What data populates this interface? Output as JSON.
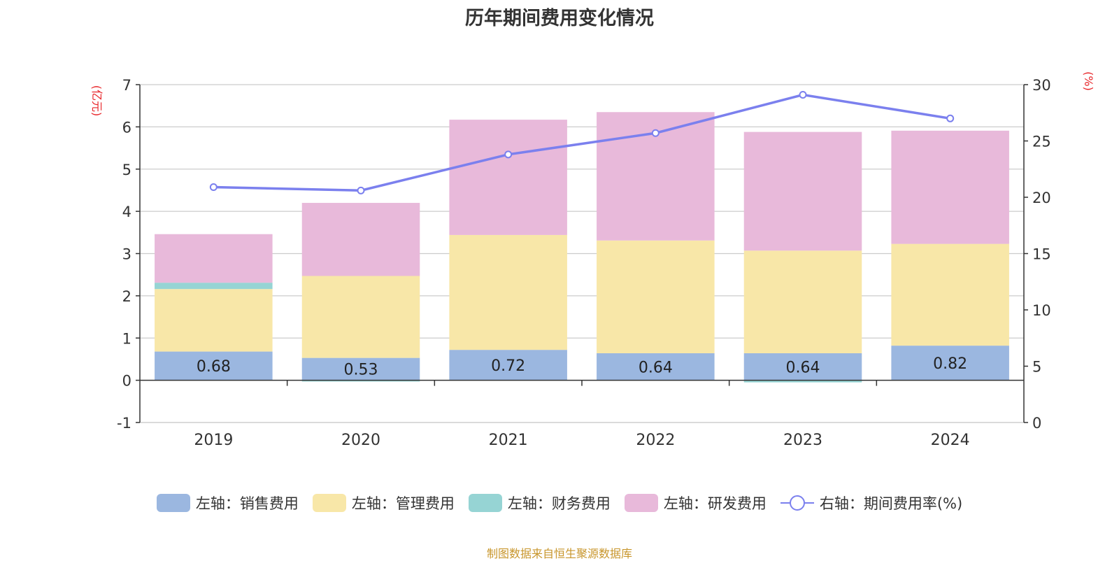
{
  "chart_data": {
    "type": "bar",
    "stacked": true,
    "title": "历年期间费用变化情况",
    "categories": [
      "2019",
      "2020",
      "2021",
      "2022",
      "2023",
      "2024"
    ],
    "ylabel_left": "(亿元)",
    "ylabel_right": "(%)",
    "ylim_left": [
      -1,
      7
    ],
    "ylim_right": [
      0,
      30
    ],
    "yticks_left": [
      -1,
      0,
      1,
      2,
      3,
      4,
      5,
      6,
      7
    ],
    "yticks_right": [
      0,
      5,
      10,
      15,
      20,
      25,
      30
    ],
    "grid": true,
    "legend_position": "bottom",
    "series": [
      {
        "name": "左轴：销售费用",
        "axis": "left",
        "color": "#9bb7e0",
        "values": [
          0.68,
          0.53,
          0.72,
          0.64,
          0.64,
          0.82
        ],
        "show_labels": true
      },
      {
        "name": "左轴：管理费用",
        "axis": "left",
        "color": "#f8e7a8",
        "values": [
          1.48,
          1.94,
          2.72,
          2.67,
          2.43,
          2.41
        ],
        "show_labels": false
      },
      {
        "name": "左轴：财务费用",
        "axis": "left",
        "color": "#96d4d4",
        "values": [
          0.15,
          -0.03,
          0.0,
          0.0,
          -0.05,
          0.0
        ],
        "show_labels": false
      },
      {
        "name": "左轴：研发费用",
        "axis": "left",
        "color": "#e8b9da",
        "values": [
          1.15,
          1.73,
          2.73,
          3.04,
          2.81,
          2.68
        ],
        "show_labels": false
      },
      {
        "name": "右轴：期间费用率(%)",
        "axis": "right",
        "type": "line",
        "color": "#7b80ee",
        "values": [
          20.9,
          20.6,
          23.8,
          25.7,
          29.1,
          27.0
        ]
      }
    ],
    "source": "制图数据来自恒生聚源数据库"
  },
  "colors": {
    "axis_label": "#e8262a",
    "source_text": "#c8962c"
  }
}
